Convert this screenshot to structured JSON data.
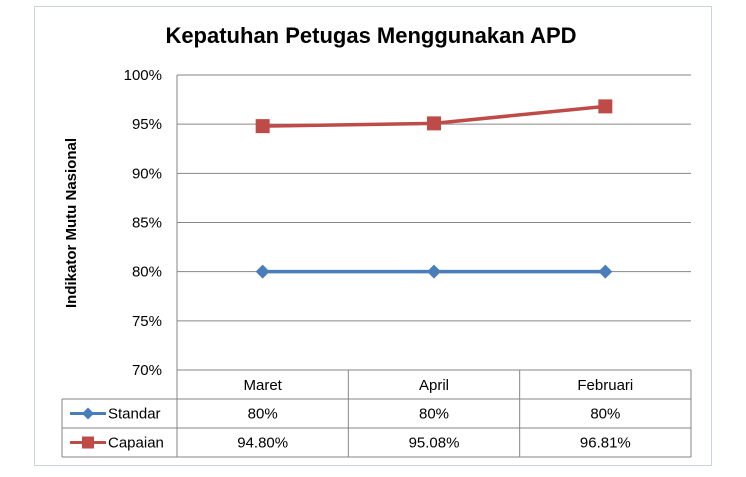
{
  "chart_data": {
    "type": "line",
    "title": "Kepatuhan Petugas Menggunakan APD",
    "xlabel": "",
    "ylabel": "Indikator Mutu Nasional",
    "ylim": [
      0.7,
      1.0
    ],
    "yticks": [
      "70%",
      "75%",
      "80%",
      "85%",
      "90%",
      "95%",
      "100%"
    ],
    "categories": [
      "Maret",
      "April",
      "Februari"
    ],
    "grid": true,
    "legend": "data-table",
    "series": [
      {
        "name": "Standar",
        "values": [
          0.8,
          0.8,
          0.8
        ],
        "labels": [
          "80%",
          "80%",
          "80%"
        ],
        "color": "#4a7ebb",
        "marker": "diamond"
      },
      {
        "name": "Capaian",
        "values": [
          0.948,
          0.9508,
          0.9681
        ],
        "labels": [
          "94.80%",
          "95.08%",
          "96.81%"
        ],
        "color": "#be4b48",
        "marker": "square"
      }
    ]
  }
}
